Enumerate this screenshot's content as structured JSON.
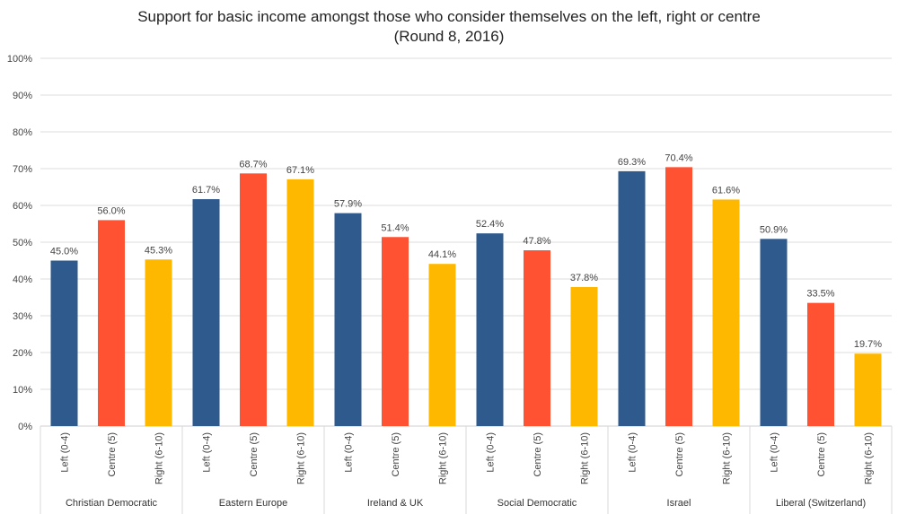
{
  "chart_data": {
    "type": "bar",
    "title": "Support for basic income amongst those who consider themselves on the left, right or centre",
    "subtitle": "(Round 8, 2016)",
    "ylim": [
      0,
      100
    ],
    "yticks": [
      "0%",
      "10%",
      "20%",
      "30%",
      "40%",
      "50%",
      "60%",
      "70%",
      "80%",
      "90%",
      "100%"
    ],
    "grid": true,
    "categories": [
      "Left (0-4)",
      "Centre (5)",
      "Right (6-10)"
    ],
    "groups": [
      {
        "name": "Christian Democratic",
        "values": [
          45.0,
          56.0,
          45.3
        ],
        "labels": [
          "45.0%",
          "56.0%",
          "45.3%"
        ]
      },
      {
        "name": "Eastern Europe",
        "values": [
          61.7,
          68.7,
          67.1
        ],
        "labels": [
          "61.7%",
          "68.7%",
          "67.1%"
        ]
      },
      {
        "name": "Ireland & UK",
        "values": [
          57.9,
          51.4,
          44.1
        ],
        "labels": [
          "57.9%",
          "51.4%",
          "44.1%"
        ]
      },
      {
        "name": "Social Democratic",
        "values": [
          52.4,
          47.8,
          37.8
        ],
        "labels": [
          "52.4%",
          "47.8%",
          "37.8%"
        ]
      },
      {
        "name": "Israel",
        "values": [
          69.3,
          70.4,
          61.6
        ],
        "labels": [
          "69.3%",
          "70.4%",
          "61.6%"
        ]
      },
      {
        "name": "Liberal (Switzerland)",
        "values": [
          50.9,
          33.5,
          19.7
        ],
        "labels": [
          "50.9%",
          "33.5%",
          "19.7%"
        ]
      }
    ],
    "colors": [
      "#2E5A8E",
      "#FF5233",
      "#FFB800"
    ]
  }
}
